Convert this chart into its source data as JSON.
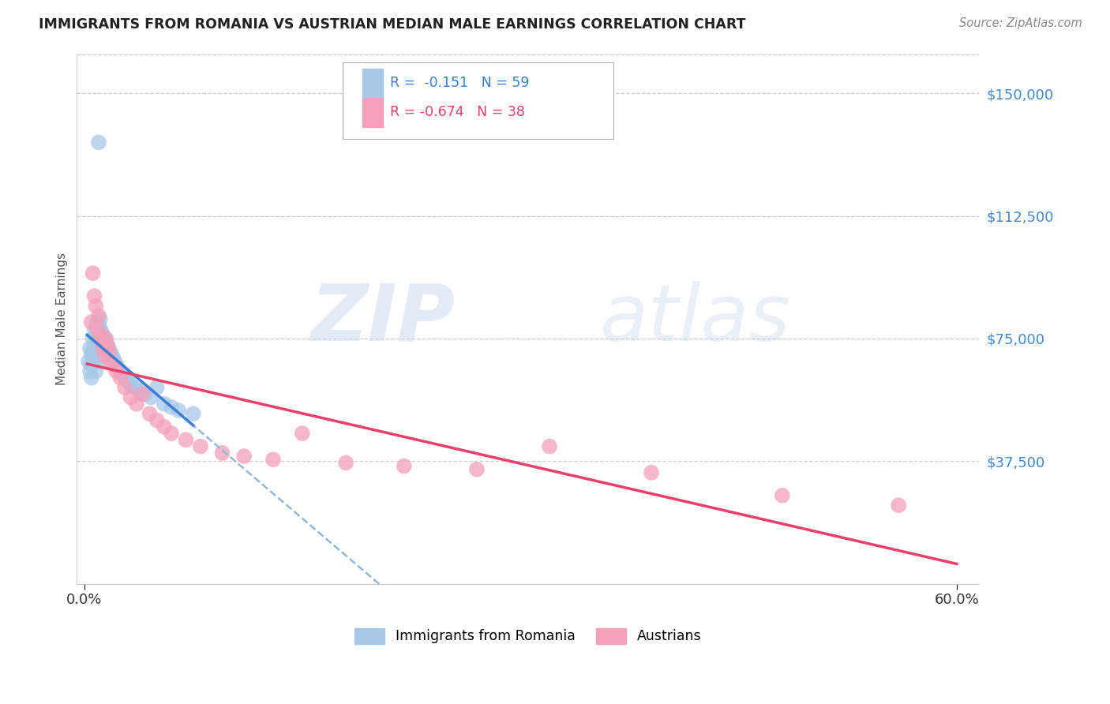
{
  "title": "IMMIGRANTS FROM ROMANIA VS AUSTRIAN MEDIAN MALE EARNINGS CORRELATION CHART",
  "source": "Source: ZipAtlas.com",
  "ylabel": "Median Male Earnings",
  "yticks": [
    0,
    37500,
    75000,
    112500,
    150000
  ],
  "ytick_labels": [
    "",
    "$37,500",
    "$75,000",
    "$112,500",
    "$150,000"
  ],
  "ylim": [
    0,
    162000
  ],
  "xlim": [
    -0.005,
    0.615
  ],
  "color_blue": "#a8c8e8",
  "color_pink": "#f4a0b8",
  "color_blue_line": "#3a7fd5",
  "color_pink_line": "#e8406a",
  "color_dashed": "#90b8d8",
  "watermark_zip": "ZIP",
  "watermark_atlas": "atlas",
  "background_color": "#ffffff",
  "title_color": "#222222",
  "ytick_color": "#4488cc",
  "source_color": "#888888",
  "legend_label_blue": "Immigrants from Romania",
  "legend_label_pink": "Austrians",
  "legend_r1_prefix": "R = ",
  "legend_r1_value": " -0.151",
  "legend_r1_n": "N = 59",
  "legend_r2_prefix": "R = ",
  "legend_r2_value": "-0.674",
  "legend_r2_n": "N = 38",
  "blue_scatter_x": [
    0.003,
    0.004,
    0.004,
    0.005,
    0.005,
    0.005,
    0.006,
    0.006,
    0.006,
    0.007,
    0.007,
    0.007,
    0.008,
    0.008,
    0.008,
    0.008,
    0.009,
    0.009,
    0.009,
    0.009,
    0.01,
    0.01,
    0.01,
    0.01,
    0.011,
    0.011,
    0.011,
    0.012,
    0.012,
    0.012,
    0.013,
    0.013,
    0.014,
    0.014,
    0.015,
    0.015,
    0.016,
    0.017,
    0.018,
    0.019,
    0.02,
    0.021,
    0.022,
    0.023,
    0.025,
    0.026,
    0.028,
    0.03,
    0.032,
    0.035,
    0.038,
    0.042,
    0.046,
    0.05,
    0.055,
    0.06,
    0.065,
    0.075,
    0.01
  ],
  "blue_scatter_y": [
    68000,
    65000,
    72000,
    70000,
    67000,
    63000,
    75000,
    71000,
    68000,
    78000,
    73000,
    69000,
    76000,
    72000,
    69000,
    65000,
    80000,
    76000,
    73000,
    70000,
    79000,
    75000,
    72000,
    68000,
    81000,
    78000,
    74000,
    77000,
    73000,
    70000,
    76000,
    72000,
    75000,
    71000,
    74000,
    70000,
    73000,
    72000,
    71000,
    70000,
    69000,
    68000,
    67000,
    66000,
    65000,
    64000,
    63000,
    62000,
    61000,
    60000,
    59000,
    58000,
    57000,
    60000,
    55000,
    54000,
    53000,
    52000,
    135000
  ],
  "pink_scatter_x": [
    0.005,
    0.006,
    0.007,
    0.008,
    0.009,
    0.01,
    0.011,
    0.012,
    0.013,
    0.014,
    0.015,
    0.016,
    0.017,
    0.018,
    0.02,
    0.022,
    0.025,
    0.028,
    0.032,
    0.036,
    0.04,
    0.045,
    0.05,
    0.055,
    0.06,
    0.07,
    0.08,
    0.095,
    0.11,
    0.13,
    0.15,
    0.18,
    0.22,
    0.27,
    0.32,
    0.39,
    0.48,
    0.56
  ],
  "pink_scatter_y": [
    80000,
    95000,
    88000,
    85000,
    78000,
    82000,
    76000,
    74000,
    72000,
    70000,
    75000,
    73000,
    71000,
    68000,
    67000,
    65000,
    63000,
    60000,
    57000,
    55000,
    58000,
    52000,
    50000,
    48000,
    46000,
    44000,
    42000,
    40000,
    39000,
    38000,
    46000,
    37000,
    36000,
    35000,
    42000,
    34000,
    27000,
    24000
  ],
  "blue_line_x": [
    0.002,
    0.075
  ],
  "pink_line_x_start": 0.002,
  "pink_line_x_end": 0.6,
  "dashed_line_x_start": 0.002,
  "dashed_line_x_end": 0.6
}
